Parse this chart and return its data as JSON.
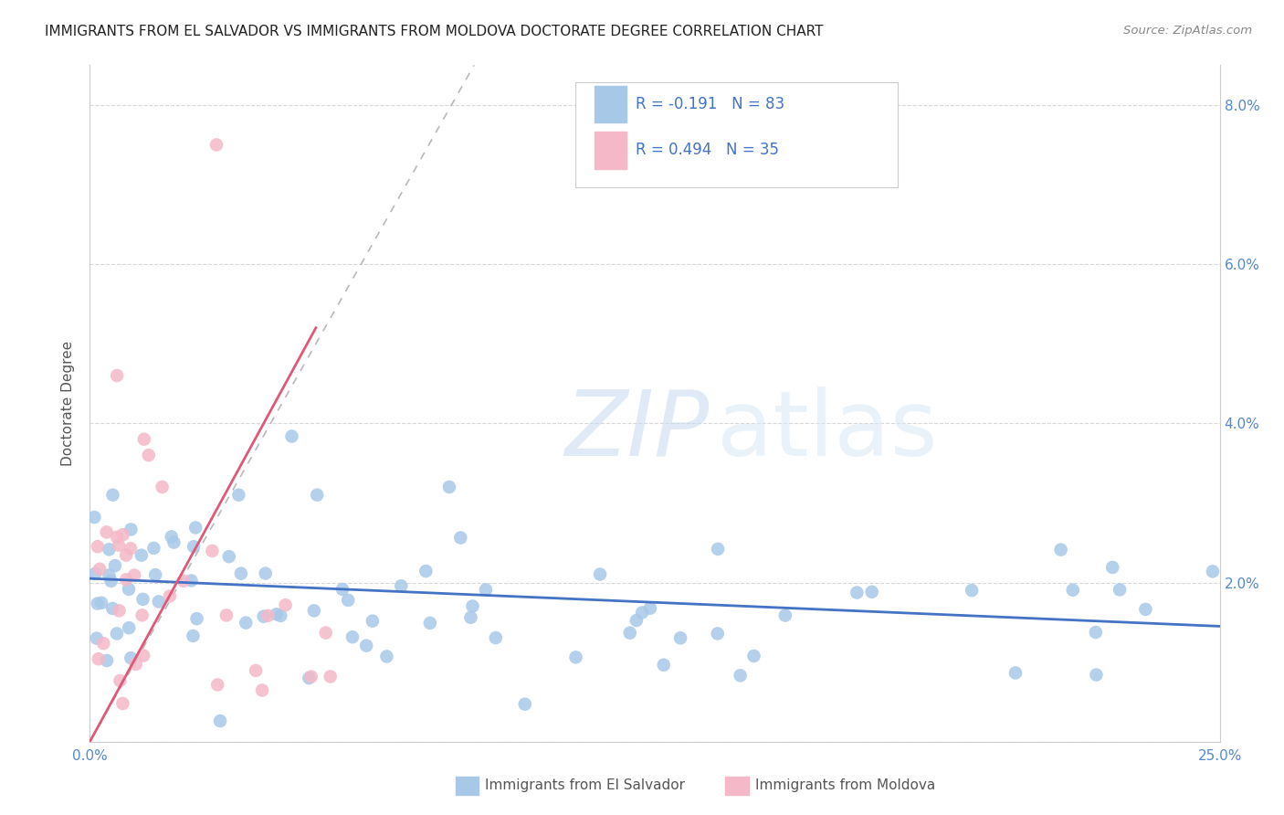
{
  "title": "IMMIGRANTS FROM EL SALVADOR VS IMMIGRANTS FROM MOLDOVA DOCTORATE DEGREE CORRELATION CHART",
  "source": "Source: ZipAtlas.com",
  "ylabel": "Doctorate Degree",
  "xlim": [
    0.0,
    0.25
  ],
  "ylim": [
    0.0,
    0.085
  ],
  "series1_name": "Immigrants from El Salvador",
  "series1_R": -0.191,
  "series1_N": 83,
  "series1_color": "#a8c8e8",
  "series1_line_color": "#4472c4",
  "series2_name": "Immigrants from Moldova",
  "series2_R": 0.494,
  "series2_N": 35,
  "series2_color": "#f4b8c8",
  "series2_line_color": "#e05878",
  "watermark_zip": "ZIP",
  "watermark_atlas": "atlas",
  "background_color": "#ffffff",
  "blue_line_x": [
    0.0,
    0.25
  ],
  "blue_line_y": [
    0.0205,
    0.0145
  ],
  "pink_line_x": [
    0.0,
    0.05
  ],
  "pink_line_y": [
    0.0,
    0.052
  ],
  "diag_line_x": [
    0.0,
    0.085
  ],
  "diag_line_y": [
    0.0,
    0.085
  ]
}
